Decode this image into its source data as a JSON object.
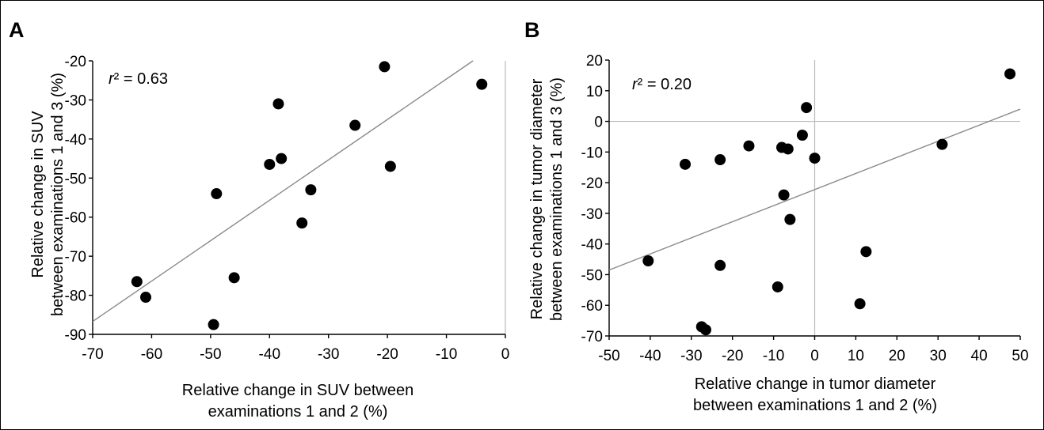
{
  "chart_data": [
    {
      "type": "scatter",
      "panel_label": "A",
      "ylabel_line1": "Relative change in SUV",
      "ylabel_line2": "between examinations 1 and 3 (%)",
      "xlabel_line1": "Relative change in SUV between",
      "xlabel_line2": "examinations 1 and 2 (%)",
      "annotation": {
        "r_label": "r",
        "rest": "² = 0.63"
      },
      "xlim": [
        -70,
        0
      ],
      "ylim": [
        -90,
        -20
      ],
      "xticks": [
        -70,
        -60,
        -50,
        -40,
        -30,
        -20,
        -10,
        0
      ],
      "yticks": [
        -90,
        -80,
        -70,
        -60,
        -50,
        -40,
        -30,
        -20
      ],
      "grid": false,
      "zero_lines": {
        "x0": true,
        "y0": false
      },
      "fit_line": {
        "x1": -70,
        "y1": -86.7,
        "x2": -5.5,
        "y2": -20
      },
      "points": [
        {
          "x": -62.5,
          "y": -76.5
        },
        {
          "x": -61,
          "y": -80.5
        },
        {
          "x": -49.5,
          "y": -87.5
        },
        {
          "x": -49,
          "y": -54
        },
        {
          "x": -46,
          "y": -75.5
        },
        {
          "x": -40,
          "y": -46.5
        },
        {
          "x": -38.5,
          "y": -31
        },
        {
          "x": -38,
          "y": -45
        },
        {
          "x": -34.5,
          "y": -61.5
        },
        {
          "x": -33,
          "y": -53
        },
        {
          "x": -25.5,
          "y": -36.5
        },
        {
          "x": -20.5,
          "y": -21.5
        },
        {
          "x": -19.5,
          "y": -47
        },
        {
          "x": -4,
          "y": -26
        }
      ]
    },
    {
      "type": "scatter",
      "panel_label": "B",
      "ylabel_line1": "Relative change in tumor diameter",
      "ylabel_line2": "between examinations 1 and 3 (%)",
      "xlabel_line1": "Relative change in tumor diameter",
      "xlabel_line2": "between examinations 1 and 2 (%)",
      "annotation": {
        "r_label": "r",
        "rest": "² = 0.20"
      },
      "xlim": [
        -50,
        50
      ],
      "ylim": [
        -70,
        20
      ],
      "xticks": [
        -50,
        -40,
        -30,
        -20,
        -10,
        0,
        10,
        20,
        30,
        40,
        50
      ],
      "yticks": [
        -70,
        -60,
        -50,
        -40,
        -30,
        -20,
        -10,
        0,
        10,
        20
      ],
      "grid": false,
      "zero_lines": {
        "x0": true,
        "y0": true
      },
      "fit_line": {
        "x1": -50,
        "y1": -48.5,
        "x2": 50,
        "y2": 4
      },
      "points": [
        {
          "x": -40.5,
          "y": -45.5
        },
        {
          "x": -31.5,
          "y": -14
        },
        {
          "x": -27.5,
          "y": -67
        },
        {
          "x": -26.5,
          "y": -68
        },
        {
          "x": -23,
          "y": -12.5
        },
        {
          "x": -23,
          "y": -47
        },
        {
          "x": -16,
          "y": -8
        },
        {
          "x": -9,
          "y": -54
        },
        {
          "x": -8,
          "y": -8.5
        },
        {
          "x": -7.5,
          "y": -24
        },
        {
          "x": -6.5,
          "y": -9
        },
        {
          "x": -6,
          "y": -32
        },
        {
          "x": -3,
          "y": -4.5
        },
        {
          "x": -2,
          "y": 4.5
        },
        {
          "x": 0,
          "y": -12
        },
        {
          "x": 11,
          "y": -59.5
        },
        {
          "x": 12.5,
          "y": -42.5
        },
        {
          "x": 31,
          "y": -7.5
        },
        {
          "x": 47.5,
          "y": 15.5
        }
      ]
    }
  ]
}
